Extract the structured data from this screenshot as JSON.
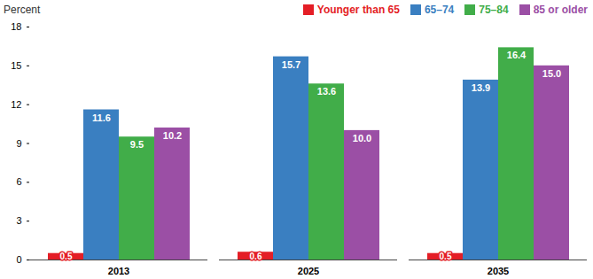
{
  "chart_data": {
    "type": "bar",
    "y_label": "Percent",
    "categories": [
      "2013",
      "2025",
      "2035"
    ],
    "series": [
      {
        "name": "Younger than 65",
        "color": "#e41e26",
        "values": [
          0.5,
          0.6,
          0.5
        ]
      },
      {
        "name": "65–74",
        "color": "#3a7fc1",
        "values": [
          11.6,
          15.7,
          13.9
        ]
      },
      {
        "name": "75–84",
        "color": "#41ad49",
        "values": [
          9.5,
          13.6,
          16.4
        ]
      },
      {
        "name": "85 or older",
        "color": "#9b4fa5",
        "values": [
          10.2,
          10.0,
          15.0
        ]
      }
    ],
    "ylim": [
      0,
      18
    ],
    "yticks": [
      0,
      3,
      6,
      9,
      12,
      15,
      18
    ],
    "grid": false,
    "data_labels": true,
    "legend": "top-right"
  }
}
